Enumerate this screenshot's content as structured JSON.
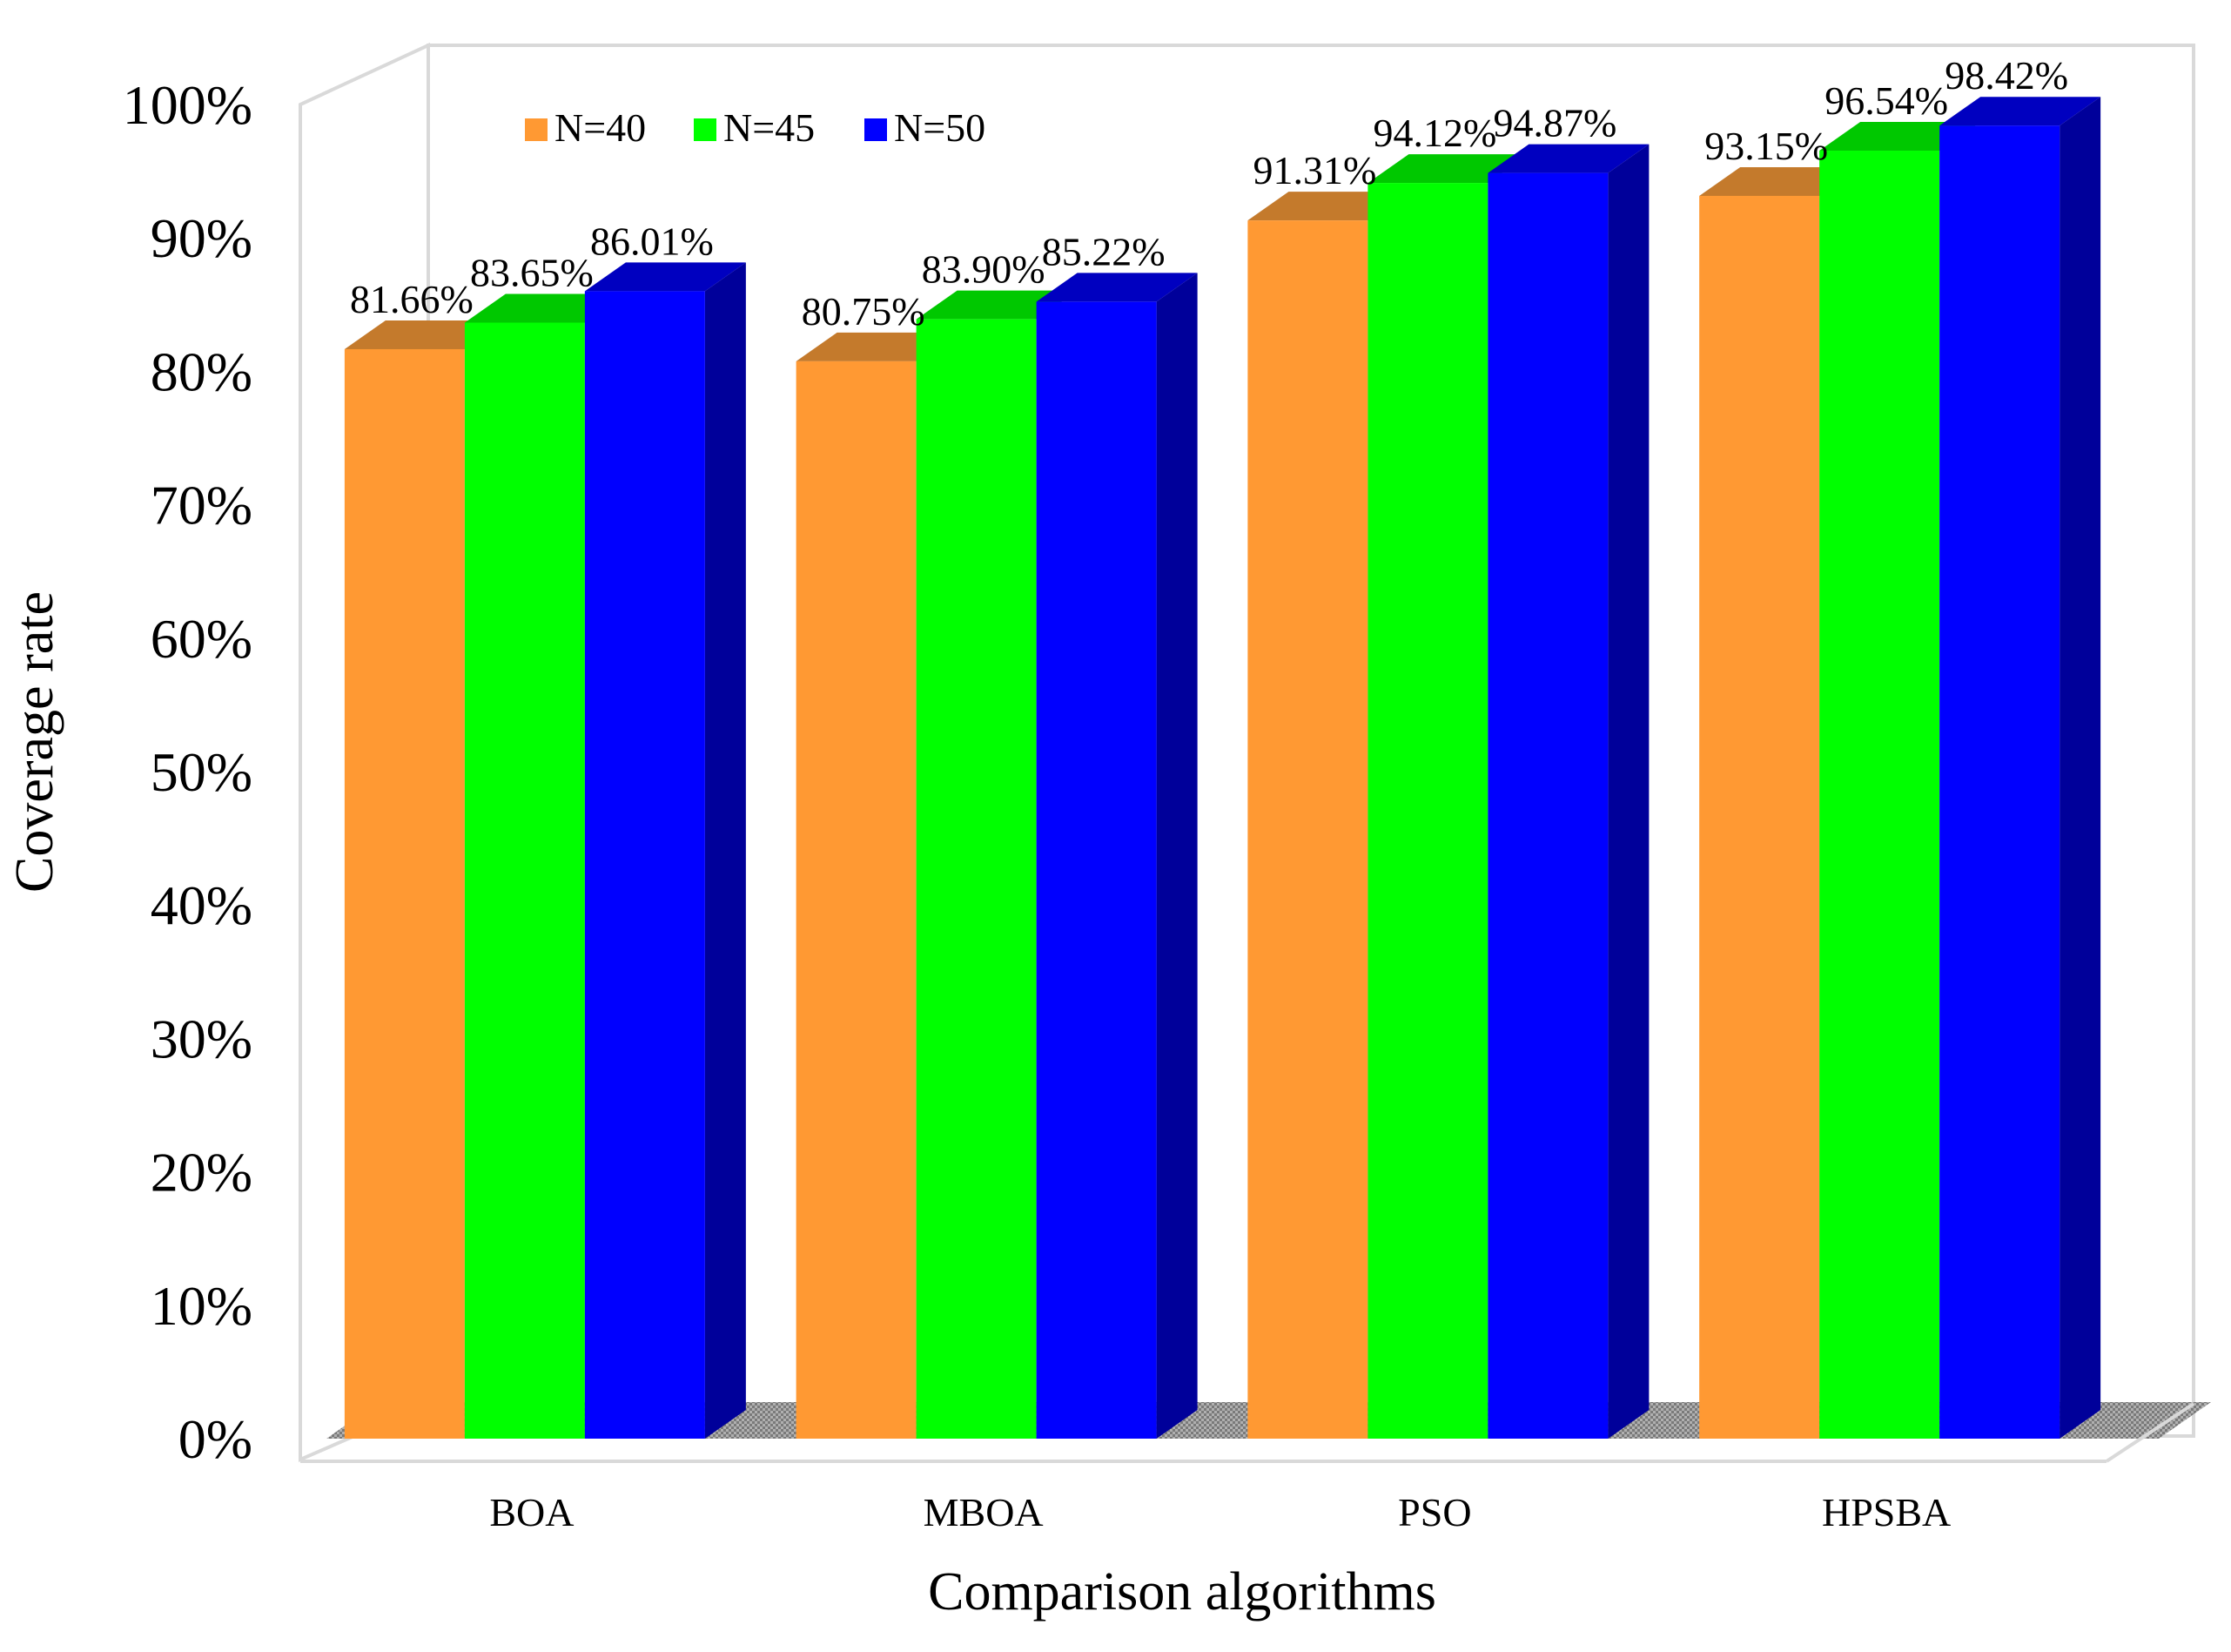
{
  "chart_data": {
    "type": "bar",
    "style": "3d-clustered-column",
    "title": "",
    "xlabel": "Comparison algorithms",
    "ylabel": "Coverage rate",
    "categories": [
      "BOA",
      "MBOA",
      "PSO",
      "HPSBA"
    ],
    "ylim": [
      0,
      100
    ],
    "yticks": [
      "0%",
      "10%",
      "20%",
      "30%",
      "40%",
      "50%",
      "60%",
      "70%",
      "80%",
      "90%",
      "100%"
    ],
    "grid": false,
    "legend_position": "top-left",
    "series": [
      {
        "name": "N=40",
        "values": [
          81.66,
          80.75,
          91.31,
          93.15
        ],
        "labels": [
          "81.66%",
          "80.75%",
          "91.31%",
          "93.15%"
        ],
        "color": "#FF9933",
        "top_color": "#C47A2C",
        "side_color": "#B86A1F"
      },
      {
        "name": "N=45",
        "values": [
          83.65,
          83.9,
          94.12,
          96.54
        ],
        "labels": [
          "83.65%",
          "83.90%",
          "94.12%",
          "96.54%"
        ],
        "color": "#00FF00",
        "top_color": "#00C800",
        "side_color": "#00A800"
      },
      {
        "name": "N=50",
        "values": [
          86.01,
          85.22,
          94.87,
          98.42
        ],
        "labels": [
          "86.01%",
          "85.22%",
          "94.87%",
          "98.42%"
        ],
        "color": "#0000FF",
        "top_color": "#0000C0",
        "side_color": "#00009A"
      }
    ]
  }
}
